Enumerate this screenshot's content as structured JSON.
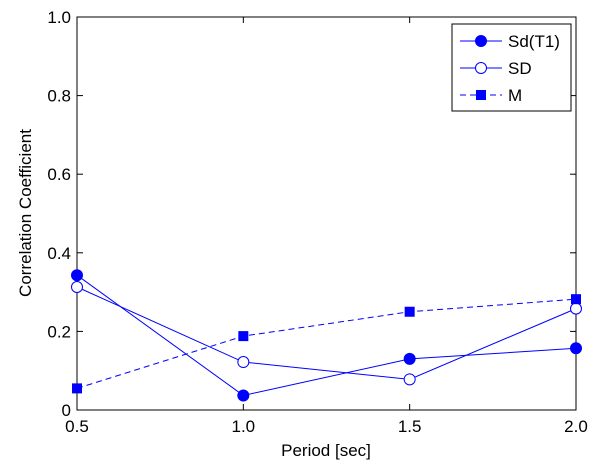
{
  "chart_data": {
    "type": "line",
    "xlabel": "Period [sec]",
    "ylabel": "Correlation Coefficient",
    "xlim": [
      0.5,
      2.0
    ],
    "ylim": [
      0,
      1.0
    ],
    "xticks": [
      "0.5",
      "1.0",
      "1.5",
      "2.0"
    ],
    "yticks": [
      "0",
      "0.2",
      "0.4",
      "0.6",
      "0.8",
      "1.0"
    ],
    "grid": false,
    "legend_position": "top-right",
    "line_color": "#0000ff",
    "x": [
      0.5,
      1.0,
      1.5,
      2.0
    ],
    "series": [
      {
        "name": "Sd(T1)",
        "values": [
          0.343,
          0.037,
          0.13,
          0.157
        ],
        "marker": "filled-circle",
        "line": "solid"
      },
      {
        "name": "SD",
        "values": [
          0.313,
          0.122,
          0.078,
          0.258
        ],
        "marker": "open-circle",
        "line": "solid"
      },
      {
        "name": "M",
        "values": [
          0.055,
          0.188,
          0.25,
          0.282
        ],
        "marker": "filled-square",
        "line": "dashed"
      }
    ]
  }
}
